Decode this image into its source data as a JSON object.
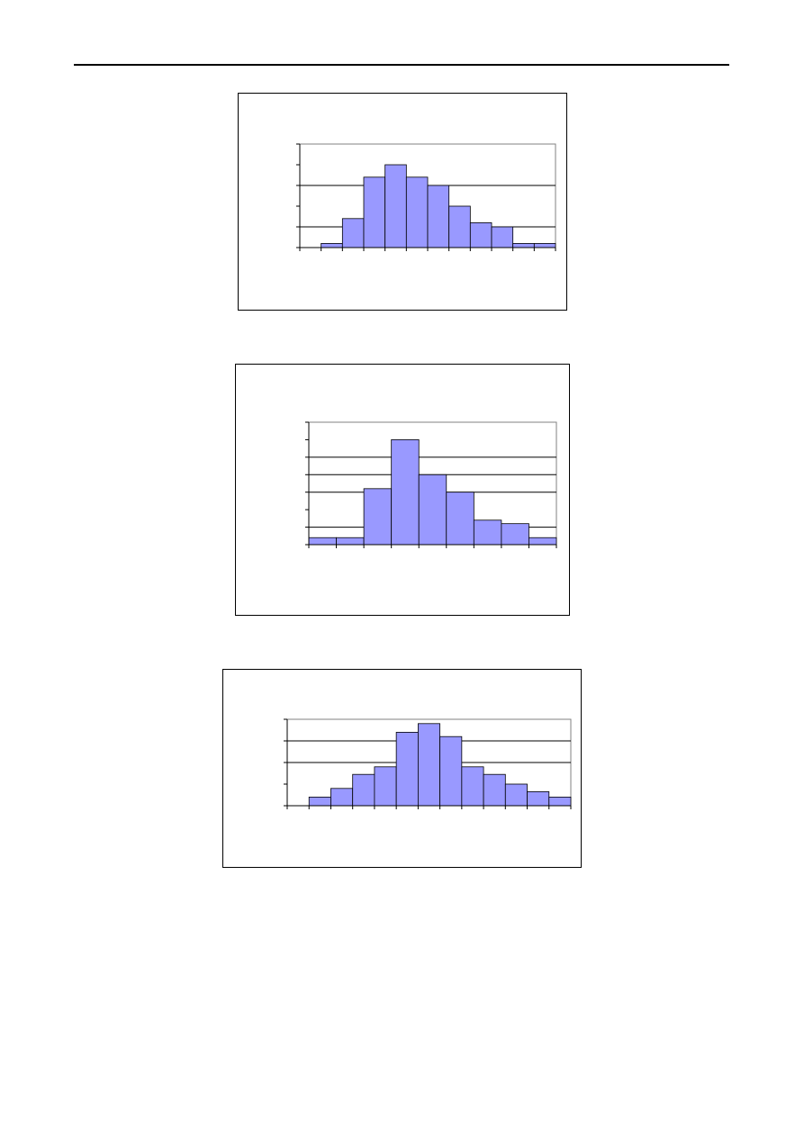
{
  "chart_data": [
    {
      "type": "histogram",
      "bins": [
        0,
        1,
        2,
        3,
        4,
        5,
        6,
        7,
        8,
        9,
        10,
        11,
        12
      ],
      "counts": [
        0,
        0.2,
        1.4,
        3.4,
        4,
        3.4,
        3,
        2,
        1.2,
        1,
        0.2,
        0.2
      ],
      "color": "#9999ff",
      "xlim": [
        0,
        12
      ],
      "xticks": [
        0,
        1,
        2,
        3,
        4,
        5,
        6,
        7,
        8,
        9,
        10,
        11,
        12
      ],
      "ylim": [
        0,
        5
      ],
      "yticks": [
        0,
        1,
        2,
        3,
        4,
        5
      ],
      "ygrid": [
        1,
        3
      ],
      "grid": true
    },
    {
      "type": "histogram",
      "bins": [
        0,
        1,
        2,
        3,
        4,
        5,
        6,
        7,
        8,
        9
      ],
      "counts": [
        0.4,
        0.4,
        3.2,
        6,
        4,
        3,
        1.4,
        1.2,
        0.4
      ],
      "color": "#9999ff",
      "xlim": [
        0,
        9
      ],
      "xticks": [
        0,
        1,
        2,
        3,
        4,
        5,
        6,
        7,
        8,
        9
      ],
      "ylim": [
        0,
        7
      ],
      "yticks": [
        0,
        1,
        2,
        3,
        4,
        5,
        6,
        7
      ],
      "ygrid": [
        1,
        3,
        4,
        5
      ],
      "grid": true
    },
    {
      "type": "histogram",
      "bins": [
        0,
        1,
        2,
        3,
        4,
        5,
        6,
        7,
        8,
        9,
        10,
        11,
        12,
        13
      ],
      "counts": [
        0,
        0.4,
        0.8,
        1.45,
        1.8,
        3.4,
        3.8,
        3.2,
        1.8,
        1.45,
        1,
        0.65,
        0.4
      ],
      "color": "#9999ff",
      "xlim": [
        0,
        13
      ],
      "xticks": [
        0,
        1,
        2,
        3,
        4,
        5,
        6,
        7,
        8,
        9,
        10,
        11,
        12,
        13
      ],
      "ylim": [
        0,
        4
      ],
      "yticks": [
        0,
        1,
        2,
        3,
        4
      ],
      "ygrid": [
        2,
        3
      ],
      "grid": true
    }
  ]
}
